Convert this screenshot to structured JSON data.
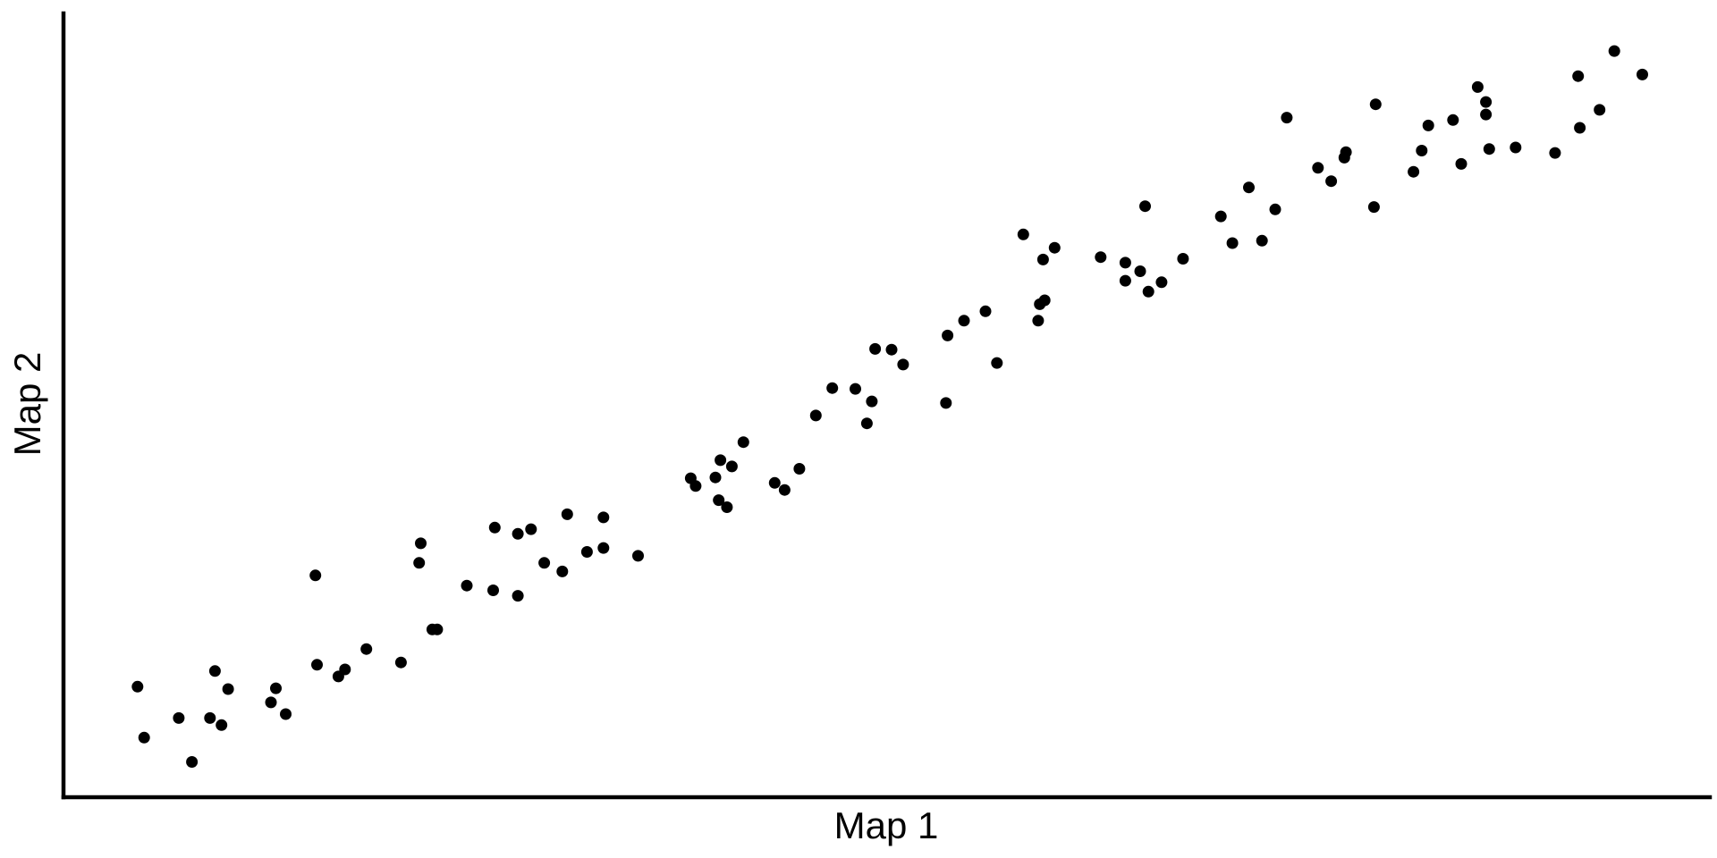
{
  "chart_data": {
    "type": "scatter",
    "title": "",
    "xlabel": "Map 1",
    "ylabel": "Map 2",
    "xlim": [
      0,
      100
    ],
    "ylim": [
      0,
      100
    ],
    "grid": false,
    "legend": null,
    "series": [
      {
        "name": "points",
        "color": "#000000",
        "points": [
          [
            4.5,
            14.1
          ],
          [
            4.9,
            7.6
          ],
          [
            7.0,
            10.1
          ],
          [
            7.8,
            4.5
          ],
          [
            8.9,
            10.1
          ],
          [
            9.2,
            16.1
          ],
          [
            9.6,
            9.2
          ],
          [
            10.0,
            13.8
          ],
          [
            12.6,
            12.1
          ],
          [
            12.9,
            13.9
          ],
          [
            13.5,
            10.6
          ],
          [
            15.3,
            28.3
          ],
          [
            15.4,
            16.9
          ],
          [
            16.7,
            15.4
          ],
          [
            17.1,
            16.3
          ],
          [
            18.4,
            18.9
          ],
          [
            20.5,
            17.2
          ],
          [
            21.6,
            29.9
          ],
          [
            21.7,
            32.4
          ],
          [
            22.4,
            21.4
          ],
          [
            22.7,
            21.4
          ],
          [
            24.5,
            27.0
          ],
          [
            26.1,
            26.4
          ],
          [
            26.2,
            34.4
          ],
          [
            27.6,
            25.7
          ],
          [
            27.6,
            33.6
          ],
          [
            28.4,
            34.2
          ],
          [
            29.2,
            29.9
          ],
          [
            30.3,
            28.8
          ],
          [
            30.6,
            36.1
          ],
          [
            31.8,
            31.3
          ],
          [
            32.8,
            31.8
          ],
          [
            32.8,
            35.7
          ],
          [
            34.9,
            30.8
          ],
          [
            38.1,
            40.7
          ],
          [
            38.4,
            39.7
          ],
          [
            39.6,
            40.8
          ],
          [
            39.8,
            37.9
          ],
          [
            39.9,
            43.0
          ],
          [
            40.3,
            37.0
          ],
          [
            40.6,
            42.2
          ],
          [
            41.3,
            45.3
          ],
          [
            43.2,
            40.1
          ],
          [
            43.8,
            39.2
          ],
          [
            44.7,
            41.9
          ],
          [
            45.7,
            48.7
          ],
          [
            46.7,
            52.2
          ],
          [
            48.1,
            52.1
          ],
          [
            48.8,
            47.7
          ],
          [
            49.1,
            50.5
          ],
          [
            49.3,
            57.2
          ],
          [
            50.3,
            57.1
          ],
          [
            51.0,
            55.2
          ],
          [
            53.6,
            50.3
          ],
          [
            53.7,
            58.9
          ],
          [
            54.7,
            60.8
          ],
          [
            56.0,
            62.0
          ],
          [
            56.7,
            55.4
          ],
          [
            58.3,
            71.8
          ],
          [
            59.2,
            60.8
          ],
          [
            59.3,
            62.9
          ],
          [
            59.5,
            68.6
          ],
          [
            59.6,
            63.4
          ],
          [
            60.2,
            70.1
          ],
          [
            63.0,
            68.9
          ],
          [
            64.5,
            68.2
          ],
          [
            64.5,
            65.9
          ],
          [
            65.4,
            67.1
          ],
          [
            65.7,
            75.4
          ],
          [
            65.9,
            64.5
          ],
          [
            66.7,
            65.7
          ],
          [
            68.0,
            68.7
          ],
          [
            70.3,
            74.1
          ],
          [
            71.0,
            70.7
          ],
          [
            72.0,
            77.8
          ],
          [
            72.8,
            71.0
          ],
          [
            73.6,
            75.0
          ],
          [
            74.3,
            86.7
          ],
          [
            76.2,
            80.3
          ],
          [
            77.0,
            78.6
          ],
          [
            77.8,
            81.6
          ],
          [
            77.9,
            82.3
          ],
          [
            79.6,
            75.3
          ],
          [
            79.7,
            88.4
          ],
          [
            82.0,
            79.8
          ],
          [
            82.5,
            82.5
          ],
          [
            82.9,
            85.7
          ],
          [
            84.4,
            86.4
          ],
          [
            84.9,
            80.8
          ],
          [
            85.9,
            90.6
          ],
          [
            86.4,
            88.7
          ],
          [
            86.4,
            87.1
          ],
          [
            86.6,
            82.7
          ],
          [
            88.2,
            82.9
          ],
          [
            90.6,
            82.2
          ],
          [
            92.0,
            92.0
          ],
          [
            92.1,
            85.4
          ],
          [
            93.3,
            87.7
          ],
          [
            94.2,
            95.2
          ],
          [
            95.9,
            92.2
          ]
        ]
      }
    ]
  }
}
